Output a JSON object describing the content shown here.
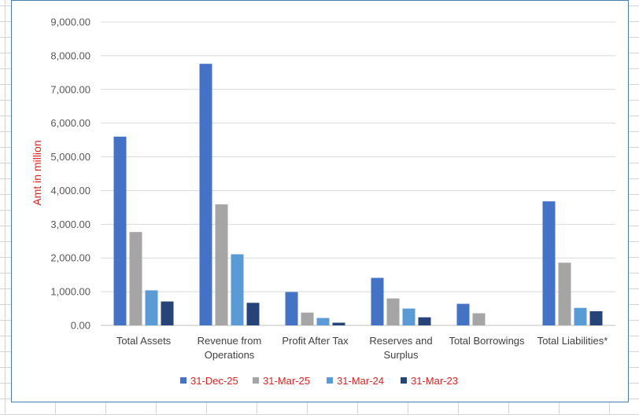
{
  "chart_data": {
    "type": "bar",
    "ylabel": "Amt in million",
    "ylim": [
      0,
      9000
    ],
    "yticks": [
      0,
      1000,
      2000,
      3000,
      4000,
      5000,
      6000,
      7000,
      8000,
      9000
    ],
    "ytick_labels": [
      "0.00",
      "1,000.00",
      "2,000.00",
      "3,000.00",
      "4,000.00",
      "5,000.00",
      "6,000.00",
      "7,000.00",
      "8,000.00",
      "9,000.00"
    ],
    "categories": [
      [
        "Total Assets"
      ],
      [
        "Revenue from",
        "Operations"
      ],
      [
        "Profit After Tax"
      ],
      [
        "Reserves and",
        "Surplus"
      ],
      [
        "Total Borrowings"
      ],
      [
        "Total Liabilities*"
      ]
    ],
    "grid": true,
    "legend_position": "bottom",
    "series": [
      {
        "name": "31-Dec-25",
        "color": "#4472C4",
        "values": [
          5600,
          7760,
          990,
          1410,
          640,
          3680
        ]
      },
      {
        "name": "31-Mar-25",
        "color": "#A5A5A5",
        "values": [
          2770,
          3590,
          380,
          800,
          360,
          1860
        ]
      },
      {
        "name": "31-Mar-24",
        "color": "#5B9BD5",
        "values": [
          1040,
          2110,
          220,
          500,
          0,
          520
        ]
      },
      {
        "name": "31-Mar-23",
        "color": "#264478",
        "values": [
          710,
          670,
          80,
          240,
          0,
          420
        ]
      }
    ]
  }
}
